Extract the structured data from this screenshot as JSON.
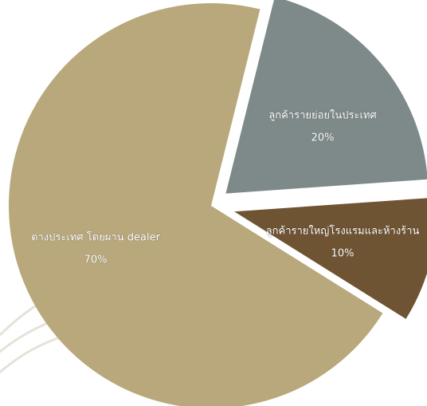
{
  "chart_data": {
    "type": "pie",
    "categories": [
      "ต่างประเทศ โดยผ่าน dealer",
      "ลูกค้ารายย่อยในประเทศ",
      "ลูกค้ารายใหญ่โรงแรมและห้างร้าน"
    ],
    "values": [
      70,
      20,
      10
    ],
    "value_labels": [
      "70%",
      "20%",
      "10%"
    ],
    "colors": [
      "#b8a87c",
      "#7e8a89",
      "#6f5433"
    ]
  }
}
